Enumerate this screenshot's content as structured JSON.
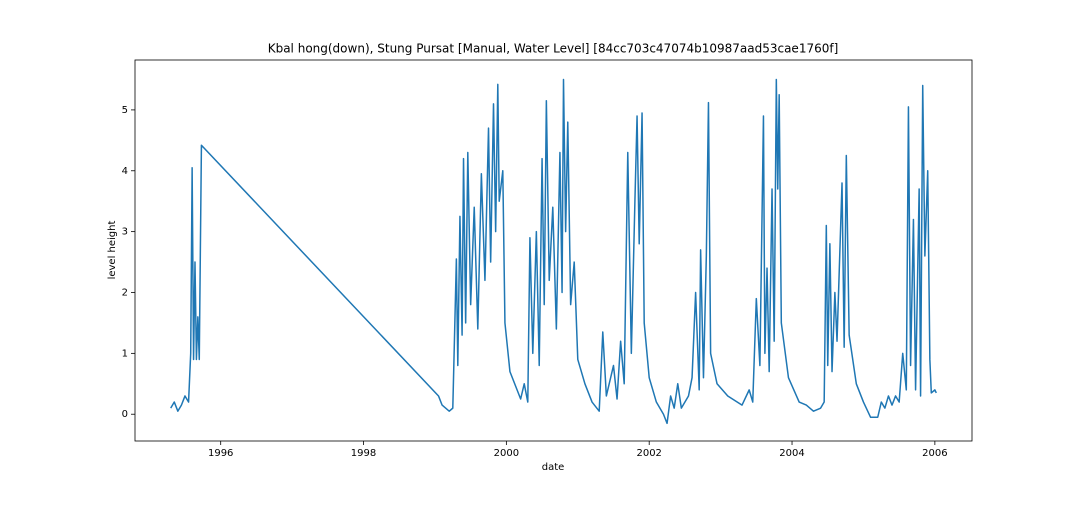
{
  "chart_data": {
    "type": "line",
    "title": "Kbal hong(down), Stung Pursat [Manual, Water Level] [84cc703c47074b10987aad53cae1760f]",
    "xlabel": "date",
    "ylabel": "level height",
    "xlim": [
      1994.8,
      2006.52
    ],
    "ylim": [
      -0.44,
      5.82
    ],
    "xticks": [
      1996,
      1998,
      2000,
      2002,
      2004,
      2006
    ],
    "yticks": [
      0,
      1,
      2,
      3,
      4,
      5
    ],
    "series": [
      {
        "color": "#1f77b4",
        "x": [
          1995.3,
          1995.35,
          1995.4,
          1995.45,
          1995.5,
          1995.55,
          1995.58,
          1995.6,
          1995.62,
          1995.64,
          1995.66,
          1995.68,
          1995.7,
          1995.73,
          1999.05,
          1999.1,
          1999.2,
          1999.25,
          1999.3,
          1999.32,
          1999.35,
          1999.38,
          1999.4,
          1999.43,
          1999.46,
          1999.5,
          1999.55,
          1999.6,
          1999.65,
          1999.7,
          1999.75,
          1999.78,
          1999.82,
          1999.85,
          1999.88,
          1999.9,
          1999.95,
          1999.98,
          2000.05,
          2000.15,
          2000.2,
          2000.25,
          2000.3,
          2000.33,
          2000.37,
          2000.42,
          2000.46,
          2000.5,
          2000.53,
          2000.56,
          2000.6,
          2000.65,
          2000.7,
          2000.75,
          2000.78,
          2000.8,
          2000.83,
          2000.86,
          2000.9,
          2000.95,
          2001.0,
          2001.1,
          2001.2,
          2001.3,
          2001.35,
          2001.4,
          2001.5,
          2001.55,
          2001.6,
          2001.65,
          2001.7,
          2001.75,
          2001.8,
          2001.83,
          2001.86,
          2001.9,
          2001.93,
          2002.0,
          2002.1,
          2002.2,
          2002.25,
          2002.3,
          2002.35,
          2002.4,
          2002.45,
          2002.55,
          2002.6,
          2002.65,
          2002.7,
          2002.72,
          2002.76,
          2002.8,
          2002.83,
          2002.86,
          2002.95,
          2003.1,
          2003.3,
          2003.4,
          2003.45,
          2003.5,
          2003.55,
          2003.6,
          2003.62,
          2003.65,
          2003.68,
          2003.72,
          2003.75,
          2003.78,
          2003.8,
          2003.82,
          2003.85,
          2003.95,
          2004.1,
          2004.2,
          2004.3,
          2004.4,
          2004.45,
          2004.48,
          2004.5,
          2004.53,
          2004.56,
          2004.6,
          2004.63,
          2004.7,
          2004.73,
          2004.76,
          2004.8,
          2004.9,
          2005.0,
          2005.1,
          2005.2,
          2005.25,
          2005.3,
          2005.35,
          2005.4,
          2005.45,
          2005.5,
          2005.55,
          2005.6,
          2005.63,
          2005.66,
          2005.7,
          2005.73,
          2005.78,
          2005.8,
          2005.83,
          2005.86,
          2005.9,
          2005.93,
          2005.95,
          2006.0,
          2006.02
        ],
        "values": [
          0.1,
          0.2,
          0.05,
          0.15,
          0.3,
          0.2,
          1.0,
          4.05,
          0.9,
          2.5,
          0.9,
          1.6,
          0.9,
          4.42,
          0.3,
          0.15,
          0.05,
          0.1,
          2.55,
          0.8,
          3.25,
          1.3,
          4.2,
          1.5,
          4.3,
          1.8,
          3.4,
          1.4,
          3.95,
          2.2,
          4.7,
          2.5,
          5.1,
          3.0,
          5.42,
          3.5,
          4.0,
          1.5,
          0.7,
          0.4,
          0.25,
          0.5,
          0.2,
          2.9,
          1.0,
          3.0,
          0.8,
          4.2,
          1.8,
          5.15,
          2.2,
          3.4,
          1.4,
          4.3,
          2.0,
          5.5,
          3.0,
          4.8,
          1.8,
          2.5,
          0.9,
          0.5,
          0.2,
          0.05,
          1.35,
          0.3,
          0.8,
          0.25,
          1.2,
          0.5,
          4.3,
          1.0,
          3.5,
          4.9,
          2.8,
          4.95,
          1.5,
          0.6,
          0.2,
          0.0,
          -0.15,
          0.3,
          0.1,
          0.5,
          0.1,
          0.3,
          0.6,
          2.0,
          0.4,
          2.7,
          0.6,
          2.6,
          5.12,
          1.0,
          0.5,
          0.3,
          0.15,
          0.4,
          0.2,
          1.9,
          0.8,
          4.9,
          1.0,
          2.4,
          0.7,
          3.7,
          1.2,
          5.5,
          3.7,
          5.25,
          1.5,
          0.6,
          0.2,
          0.15,
          0.05,
          0.1,
          0.2,
          3.1,
          0.8,
          2.8,
          0.7,
          2.0,
          1.2,
          3.8,
          1.1,
          4.25,
          1.3,
          0.5,
          0.2,
          -0.05,
          -0.05,
          0.2,
          0.1,
          0.3,
          0.15,
          0.3,
          0.2,
          1.0,
          0.4,
          5.05,
          0.8,
          3.2,
          0.4,
          3.7,
          0.3,
          5.4,
          2.6,
          4.0,
          0.9,
          0.35,
          0.4,
          0.35
        ]
      }
    ]
  }
}
